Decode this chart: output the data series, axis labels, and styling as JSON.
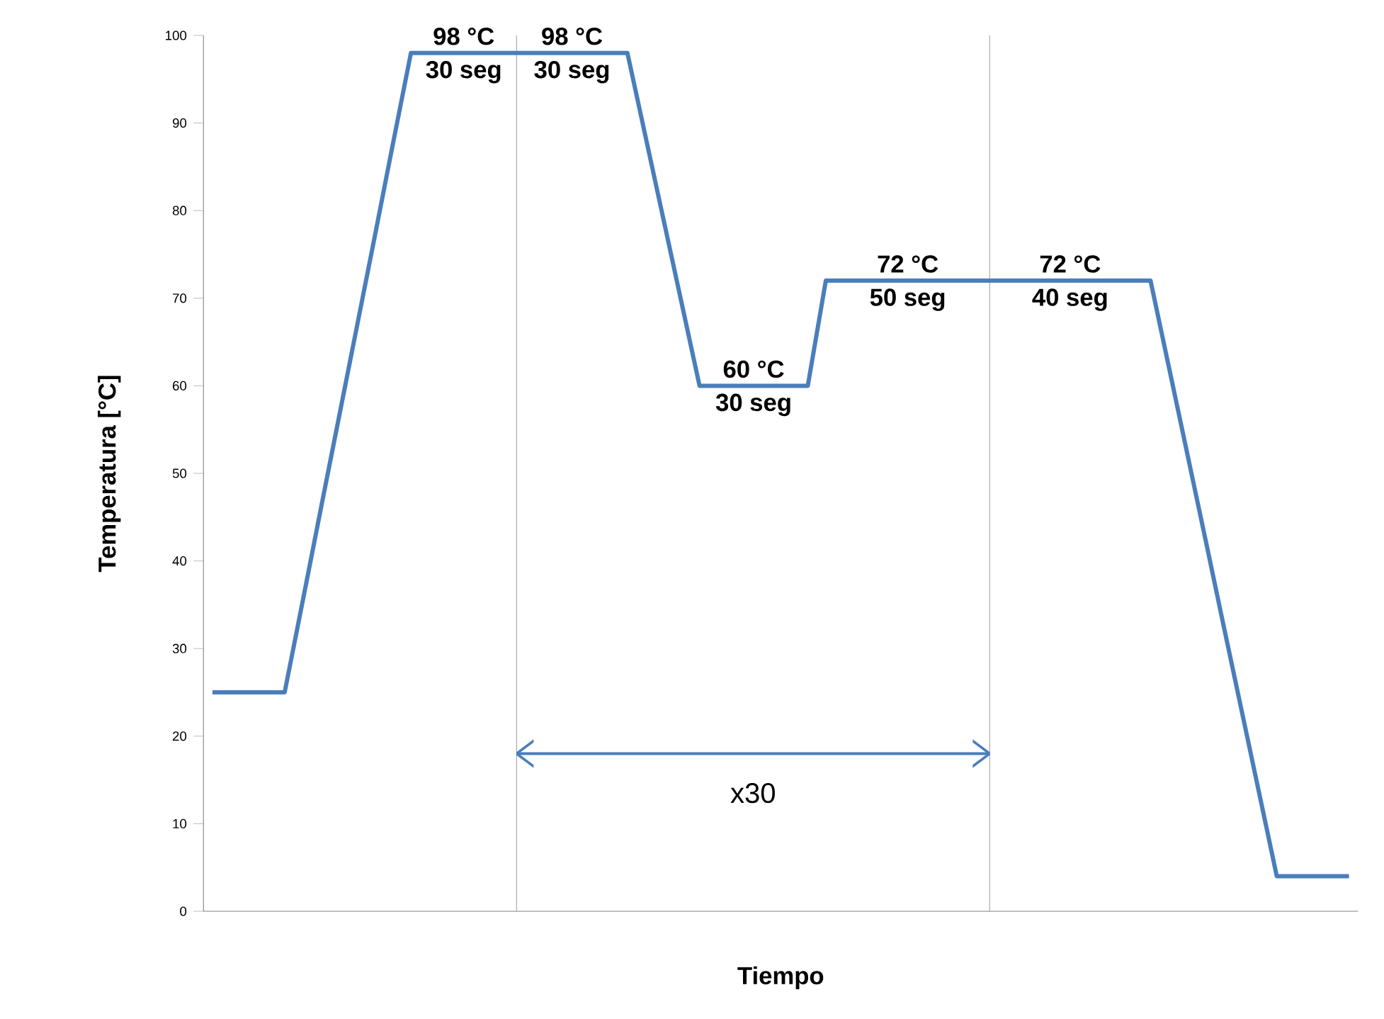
{
  "chart_data": {
    "type": "line",
    "xlabel": "Tiempo",
    "ylabel": "Temperatura [°C]",
    "categories": [
      null,
      null,
      null,
      null,
      null,
      null,
      null,
      null,
      null,
      null,
      null,
      null,
      null,
      null,
      null,
      null,
      null,
      null,
      null,
      null,
      null,
      null,
      null,
      null,
      null,
      null,
      null,
      null,
      null,
      null,
      null,
      null,
      null,
      null,
      null,
      null,
      null,
      null,
      null,
      null,
      null,
      null,
      null,
      null,
      null,
      null,
      null,
      null,
      null,
      null,
      null,
      null,
      null,
      null,
      null,
      null,
      null,
      null,
      null,
      null,
      null,
      null,
      null,
      null
    ],
    "values": [
      25,
      25,
      25,
      25,
      25,
      35.4,
      45.9,
      56.3,
      66.7,
      77.1,
      87.6,
      98,
      98,
      98,
      98,
      98,
      98,
      98,
      98,
      98,
      98,
      98,
      98,
      98,
      88.5,
      79,
      69.5,
      60,
      60,
      60,
      60,
      60,
      60,
      60,
      72,
      72,
      72,
      72,
      72,
      72,
      72,
      72,
      72,
      72,
      72,
      72,
      72,
      72,
      72,
      72,
      72,
      72,
      72,
      62.3,
      52.6,
      42.9,
      33.1,
      23.4,
      13.7,
      4,
      4,
      4,
      4,
      4
    ],
    "color": "#4a7ebb",
    "ylim": [
      0,
      100
    ],
    "yticks": [
      0,
      10,
      20,
      30,
      40,
      50,
      60,
      70,
      80,
      90,
      100
    ],
    "tick_labels": "y",
    "grid": false,
    "annotations": [
      {
        "text": "98 °C",
        "y": 98
      },
      {
        "text": "30 seg",
        "y": 98
      },
      {
        "text": "98 °C",
        "y": 98
      },
      {
        "text": "30 seg",
        "y": 98
      },
      {
        "text": "60 °C",
        "y": 60
      },
      {
        "text": "30 seg",
        "y": 60
      },
      {
        "text": "72 °C",
        "y": 72
      },
      {
        "text": "50 seg",
        "y": 72
      },
      {
        "text": "72 °C",
        "y": 72
      },
      {
        "text": "40 seg",
        "y": 72
      },
      "x30"
    ]
  }
}
